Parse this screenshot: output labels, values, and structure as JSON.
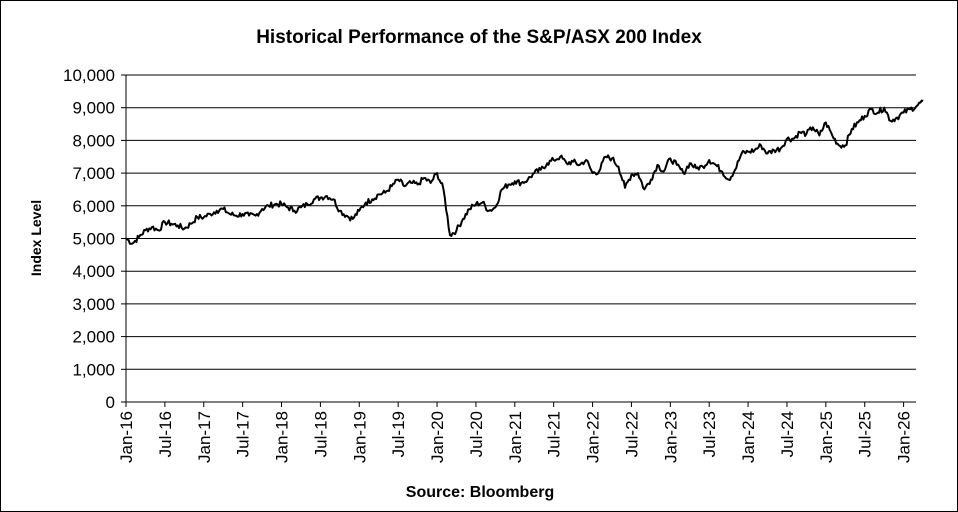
{
  "chart_data": {
    "type": "line",
    "title": "Historical  Performance  of the S&P/ASX 200 Index",
    "xlabel": "Source: Bloomberg",
    "ylabel": "Index Level",
    "ylim": [
      0,
      10000
    ],
    "yticks": [
      0,
      1000,
      2000,
      3000,
      4000,
      5000,
      6000,
      7000,
      8000,
      9000,
      10000
    ],
    "ytick_labels": [
      "0",
      "1,000",
      "2,000",
      "3,000",
      "4,000",
      "5,000",
      "6,000",
      "7,000",
      "8,000",
      "9,000",
      "10,000"
    ],
    "xtick_labels": [
      "Jan-16",
      "Jul-16",
      "Jan-17",
      "Jul-17",
      "Jan-18",
      "Jul-18",
      "Jan-19",
      "Jul-19",
      "Jan-20",
      "Jul-20",
      "Jan-21",
      "Jul-21",
      "Jan-22",
      "Jul-22",
      "Jan-23",
      "Jul-23",
      "Jan-24",
      "Jul-24",
      "Jan-25",
      "Jul-25",
      "Jan-26"
    ],
    "xlim_months_from_jan16": [
      0,
      122.5
    ],
    "grid": "horizontal",
    "legend": "none",
    "series": [
      {
        "name": "S&P/ASX 200 Index",
        "color": "#000000",
        "start": "Jan-16",
        "frequency": "monthly",
        "values": [
          5000,
          4850,
          5050,
          5250,
          5350,
          5250,
          5500,
          5450,
          5400,
          5300,
          5450,
          5650,
          5650,
          5750,
          5850,
          5900,
          5750,
          5700,
          5750,
          5700,
          5700,
          5900,
          6000,
          6050,
          6050,
          5950,
          5850,
          5950,
          6050,
          6200,
          6250,
          6300,
          6200,
          5850,
          5700,
          5600,
          5850,
          6100,
          6200,
          6350,
          6400,
          6600,
          6800,
          6600,
          6700,
          6650,
          6850,
          6700,
          7000,
          6500,
          5100,
          5250,
          5600,
          5900,
          6050,
          6100,
          5850,
          5950,
          6500,
          6650,
          6750,
          6700,
          6800,
          7000,
          7100,
          7300,
          7400,
          7500,
          7300,
          7350,
          7250,
          7400,
          7000,
          7050,
          7500,
          7450,
          7200,
          6550,
          6950,
          7000,
          6500,
          6800,
          7250,
          7050,
          7450,
          7250,
          7000,
          7300,
          7150,
          7200,
          7400,
          7250,
          7050,
          6800,
          7100,
          7600,
          7650,
          7700,
          7850,
          7600,
          7700,
          7750,
          8050,
          8050,
          8250,
          8200,
          8400,
          8150,
          8550,
          8150,
          7850,
          7850,
          8350,
          8550,
          8750,
          8950,
          8850,
          9000,
          8600,
          8700,
          8850,
          8950,
          9050,
          9200
        ]
      }
    ]
  }
}
